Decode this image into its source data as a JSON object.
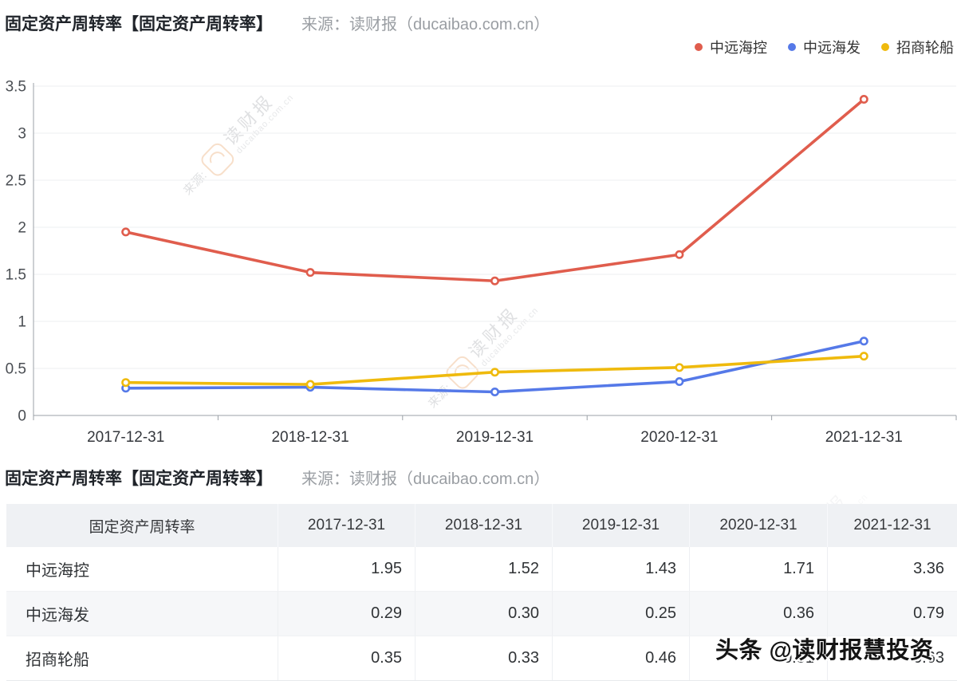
{
  "chart_section": {
    "title": "固定资产周转率【固定资产周转率】",
    "source": "来源：读财报（ducaibao.com.cn）"
  },
  "table_section": {
    "title": "固定资产周转率【固定资产周转率】",
    "source": "来源：读财报（ducaibao.com.cn）"
  },
  "watermark": {
    "corner_text": "头条 @读财报慧投资",
    "source_prefix": "来源:",
    "brand": "读财报",
    "domain": "ducaibao.com.cn"
  },
  "colors": {
    "red": "#e05d4d",
    "blue": "#5579e8",
    "yellow": "#efba0d",
    "grid": "#eeeff1",
    "axis_line": "#9ba1a7",
    "axis_text": "#4a4e53",
    "label_text": "#34373c",
    "header_bg": "#eff1f4",
    "alt_row_bg": "#f6f7f9"
  },
  "chart_data": {
    "type": "line",
    "title": "固定资产周转率【固定资产周转率】",
    "categories": [
      "2017-12-31",
      "2018-12-31",
      "2019-12-31",
      "2020-12-31",
      "2021-12-31"
    ],
    "series": [
      {
        "name": "中远海控",
        "color": "#e05d4d",
        "values": [
          1.95,
          1.52,
          1.43,
          1.71,
          3.36
        ]
      },
      {
        "name": "中远海发",
        "color": "#5579e8",
        "values": [
          0.29,
          0.3,
          0.25,
          0.36,
          0.79
        ]
      },
      {
        "name": "招商轮船",
        "color": "#efba0d",
        "values": [
          0.35,
          0.33,
          0.46,
          0.51,
          0.63
        ]
      }
    ],
    "xlabel": "",
    "ylabel": "",
    "ylim": [
      0,
      3.5
    ],
    "yticks": [
      0,
      0.5,
      1,
      1.5,
      2,
      2.5,
      3,
      3.5
    ],
    "grid": true,
    "legend_position": "top-right",
    "marker": "hollow-circle"
  },
  "table": {
    "header": [
      "固定资产周转率",
      "2017-12-31",
      "2018-12-31",
      "2019-12-31",
      "2020-12-31",
      "2021-12-31"
    ],
    "rows": [
      [
        "中远海控",
        "1.95",
        "1.52",
        "1.43",
        "1.71",
        "3.36"
      ],
      [
        "中远海发",
        "0.29",
        "0.30",
        "0.25",
        "0.36",
        "0.79"
      ],
      [
        "招商轮船",
        "0.35",
        "0.33",
        "0.46",
        "0.51",
        "0.63"
      ]
    ]
  }
}
